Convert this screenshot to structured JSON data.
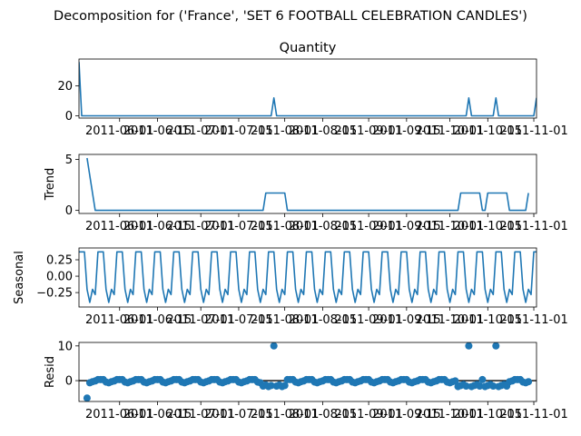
{
  "chart_data": {
    "type": "line",
    "title": "Decomposition for ('France', 'SET 6 FOOTBALL CELEBRATION CANDLES')",
    "x_start": "2011-05-17",
    "x_tick_labels": [
      "2011-06-01",
      "2011-06-15",
      "2011-07-01",
      "2011-07-15",
      "2011-08-01",
      "2011-08-15",
      "2011-09-01",
      "2011-09-15",
      "2011-10-01",
      "2011-10-15",
      "2011-11-01"
    ],
    "x_tick_days": [
      15,
      29,
      45,
      59,
      76,
      90,
      107,
      121,
      137,
      151,
      168
    ],
    "x_days": [
      0,
      1,
      2,
      3,
      4,
      5,
      6,
      7,
      8,
      9,
      10,
      11,
      12,
      13,
      14,
      15,
      16,
      17,
      18,
      19,
      20,
      21,
      22,
      23,
      24,
      25,
      26,
      27,
      28,
      29,
      30,
      31,
      32,
      33,
      34,
      35,
      36,
      37,
      38,
      39,
      40,
      41,
      42,
      43,
      44,
      45,
      46,
      47,
      48,
      49,
      50,
      51,
      52,
      53,
      54,
      55,
      56,
      57,
      58,
      59,
      60,
      61,
      62,
      63,
      64,
      65,
      66,
      67,
      68,
      69,
      70,
      71,
      72,
      73,
      74,
      75,
      76,
      77,
      78,
      79,
      80,
      81,
      82,
      83,
      84,
      85,
      86,
      87,
      88,
      89,
      90,
      91,
      92,
      93,
      94,
      95,
      96,
      97,
      98,
      99,
      100,
      101,
      102,
      103,
      104,
      105,
      106,
      107,
      108,
      109,
      110,
      111,
      112,
      113,
      114,
      115,
      116,
      117,
      118,
      119,
      120,
      121,
      122,
      123,
      124,
      125,
      126,
      127,
      128,
      129,
      130,
      131,
      132,
      133,
      134,
      135,
      136,
      137,
      138,
      139,
      140,
      141,
      142,
      143,
      144,
      145,
      146,
      147,
      148,
      149,
      150,
      151,
      152,
      153,
      154,
      155,
      156,
      157,
      158,
      159,
      160,
      161,
      162,
      163,
      164,
      165,
      166,
      167,
      168,
      169
    ],
    "panels": [
      {
        "name": "quantity",
        "ylabel": "",
        "subtitle": "Quantity",
        "ylim": [
          -1.5,
          38
        ],
        "yticks": [
          0,
          20
        ],
        "ytick_labels": [
          "0",
          "20"
        ],
        "kind": "line",
        "values": [
          36,
          0,
          0,
          0,
          0,
          0,
          0,
          0,
          0,
          0,
          0,
          0,
          0,
          0,
          0,
          0,
          0,
          0,
          0,
          0,
          0,
          0,
          0,
          0,
          0,
          0,
          0,
          0,
          0,
          0,
          0,
          0,
          0,
          0,
          0,
          0,
          0,
          0,
          0,
          0,
          0,
          0,
          0,
          0,
          0,
          0,
          0,
          0,
          0,
          0,
          0,
          0,
          0,
          0,
          0,
          0,
          0,
          0,
          0,
          0,
          0,
          0,
          0,
          0,
          0,
          0,
          0,
          0,
          0,
          0,
          0,
          0,
          0,
          0,
          0,
          0,
          0,
          0,
          0,
          0,
          0,
          0,
          0,
          0,
          0,
          0,
          0,
          0,
          0,
          0,
          0,
          0,
          0,
          0,
          0,
          0,
          0,
          0,
          0,
          0,
          0,
          0,
          0,
          0,
          0,
          0,
          0,
          0,
          0,
          0,
          0,
          0,
          0,
          0,
          0,
          0,
          0,
          0,
          0,
          0,
          0,
          0,
          0,
          0,
          0,
          0,
          0,
          0,
          0,
          0,
          0,
          0,
          0,
          0,
          0,
          0,
          0,
          0,
          0,
          0,
          0,
          0,
          0,
          0,
          0,
          0,
          0,
          0,
          0,
          0,
          0,
          0,
          0,
          0,
          0,
          0,
          0,
          0,
          0,
          0,
          0,
          0,
          0,
          0,
          0,
          0,
          0,
          0,
          0,
          0
        ],
        "spikes": [
          [
            72,
            12
          ],
          [
            144,
            12
          ],
          [
            154,
            12
          ],
          [
            169,
            12
          ]
        ]
      },
      {
        "name": "trend",
        "ylabel": "Trend",
        "subtitle": "",
        "ylim": [
          -0.3,
          5.5
        ],
        "yticks": [
          0,
          5
        ],
        "ytick_labels": [
          "0",
          "5"
        ],
        "kind": "line",
        "segments": [
          [
            3,
            5.14
          ],
          [
            4,
            3.43
          ],
          [
            5,
            1.71
          ],
          [
            6,
            0
          ],
          [
            68,
            0
          ],
          [
            69,
            1.71
          ],
          [
            76,
            1.71
          ],
          [
            77,
            0
          ],
          [
            140,
            0
          ],
          [
            141,
            1.71
          ],
          [
            148,
            1.71
          ],
          [
            149,
            0
          ],
          [
            150,
            0
          ],
          [
            151,
            1.71
          ],
          [
            158,
            1.71
          ],
          [
            159,
            0
          ],
          [
            165,
            0
          ],
          [
            166,
            1.71
          ]
        ]
      },
      {
        "name": "seasonal",
        "ylabel": "Seasonal",
        "subtitle": "",
        "ylim": [
          -0.47,
          0.43
        ],
        "yticks": [
          0.25,
          0,
          -0.25
        ],
        "ytick_labels": [
          "0.25",
          "0.00",
          "−0.25"
        ],
        "kind": "line",
        "period": 7,
        "pattern": [
          0.37,
          0.37,
          0.37,
          -0.2,
          -0.4,
          -0.2,
          -0.28
        ]
      },
      {
        "name": "resid",
        "ylabel": "Resid",
        "subtitle": "",
        "ylim": [
          -6,
          11
        ],
        "yticks": [
          0,
          10
        ],
        "ytick_labels": [
          "0",
          "10"
        ],
        "kind": "scatter",
        "outliers": [
          [
            3,
            -5
          ],
          [
            72,
            10
          ],
          [
            144,
            10
          ],
          [
            154,
            10
          ]
        ]
      }
    ]
  }
}
